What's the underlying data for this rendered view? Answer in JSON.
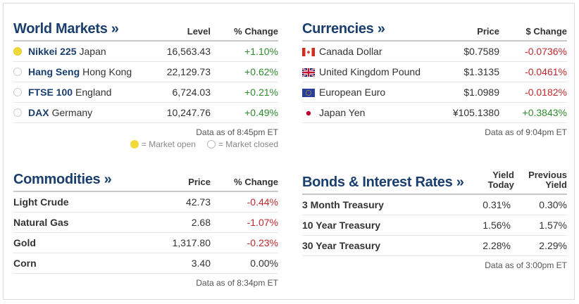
{
  "world_markets": {
    "title": "World Markets »",
    "col_level": "Level",
    "col_change": "% Change",
    "rows": [
      {
        "name": "Nikkei 225",
        "region": "Japan",
        "level": "16,563.43",
        "change": "+1.10%",
        "status": "open"
      },
      {
        "name": "Hang Seng",
        "region": "Hong Kong",
        "level": "22,129.73",
        "change": "+0.62%",
        "status": "closed"
      },
      {
        "name": "FTSE 100",
        "region": "England",
        "level": "6,724.03",
        "change": "+0.21%",
        "status": "closed"
      },
      {
        "name": "DAX",
        "region": "Germany",
        "level": "10,247.76",
        "change": "+0.49%",
        "status": "closed"
      }
    ],
    "note": "Data as of 8:45pm ET",
    "legend_open": "= Market open",
    "legend_closed": "= Market closed"
  },
  "currencies": {
    "title": "Currencies »",
    "col_price": "Price",
    "col_change": "$ Change",
    "rows": [
      {
        "flag": "canada-flag-icon",
        "name": "Canada Dollar",
        "price": "$0.7589",
        "change": "-0.0736%"
      },
      {
        "flag": "uk-flag-icon",
        "name": "United Kingdom Pound",
        "price": "$1.3135",
        "change": "-0.0461%"
      },
      {
        "flag": "eu-flag-icon",
        "name": "European Euro",
        "price": "$1.0989",
        "change": "-0.0182%"
      },
      {
        "flag": "japan-flag-icon",
        "name": "Japan Yen",
        "price": "¥105.1380",
        "change": "+0.3843%"
      }
    ],
    "note": "Data as of 9:04pm ET"
  },
  "commodities": {
    "title": "Commodities »",
    "col_price": "Price",
    "col_change": "% Change",
    "rows": [
      {
        "name": "Light Crude",
        "price": "42.73",
        "change": "-0.44%"
      },
      {
        "name": "Natural Gas",
        "price": "2.68",
        "change": "-1.07%"
      },
      {
        "name": "Gold",
        "price": "1,317.80",
        "change": "-0.23%"
      },
      {
        "name": "Corn",
        "price": "3.40",
        "change": "0.00%"
      }
    ],
    "note": "Data as of 8:34pm ET"
  },
  "bonds": {
    "title": "Bonds & Interest Rates »",
    "col_yield_1": "Yield",
    "col_yield_2": "Today",
    "col_prev_1": "Previous",
    "col_prev_2": "Yield",
    "rows": [
      {
        "name": "3 Month Treasury",
        "yield": "0.31%",
        "prev": "0.30%"
      },
      {
        "name": "10 Year Treasury",
        "yield": "1.56%",
        "prev": "1.57%"
      },
      {
        "name": "30 Year Treasury",
        "yield": "2.28%",
        "prev": "2.29%"
      }
    ],
    "note": "Data as of 3:00pm ET"
  },
  "colors": {
    "title": "#1a3e6e",
    "positive": "#2e8b2e",
    "negative": "#c0282d",
    "open_dot": "#f2d93a"
  }
}
